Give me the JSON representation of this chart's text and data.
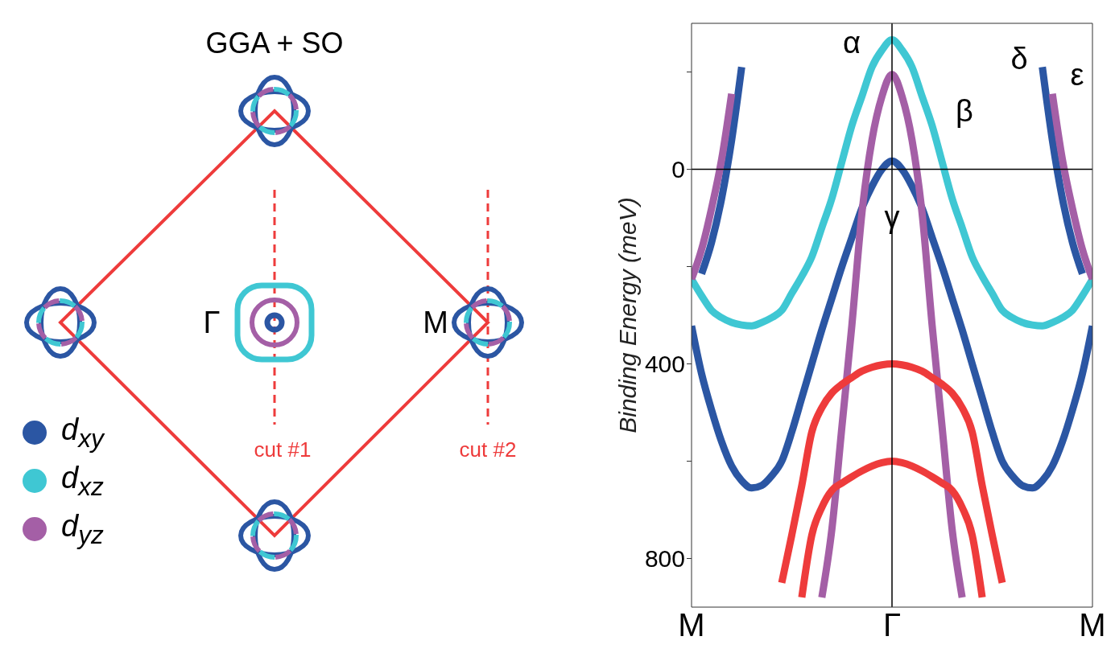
{
  "chart_data": [
    {
      "type": "other",
      "title": "GGA + SO",
      "annotations": [
        "Γ",
        "M",
        "cut #1",
        "cut #2"
      ]
    },
    {
      "type": "line",
      "ylabel": "Binding Energy (meV)",
      "categories": [
        "M",
        null,
        null,
        null,
        null,
        null,
        null,
        null,
        null,
        null,
        null,
        null,
        null,
        null,
        null,
        null,
        null,
        null,
        null,
        null,
        "Γ",
        null,
        null,
        null,
        null,
        null,
        null,
        null,
        null,
        null,
        null,
        null,
        null,
        null,
        null,
        null,
        null,
        null,
        null,
        null,
        "M"
      ],
      "ylim": [
        900,
        -300
      ],
      "yticks": [
        {
          "value": -200,
          "label": null
        },
        0,
        {
          "value": 200,
          "label": null
        },
        400,
        {
          "value": 600,
          "label": null
        },
        800
      ],
      "legend": "left",
      "ref_lines": [
        {
          "axis": "y",
          "value": 0,
          "color": "#000000"
        },
        {
          "axis": "x",
          "value": "Γ",
          "color": "#000000"
        }
      ],
      "annotations": [
        "α",
        "β",
        "γ",
        "δ",
        "ε"
      ],
      "series": [
        {
          "name": "d$_{xy}$",
          "color": "#2b56a3",
          "values": [
            322,
            420,
            495,
            560,
            610,
            640,
            655,
            650,
            630,
            600,
            540,
            470,
            400,
            330,
            265,
            200,
            140,
            80,
            35,
            0,
            -17,
            0,
            35,
            80,
            140,
            200,
            265,
            330,
            400,
            470,
            540,
            600,
            630,
            650,
            655,
            640,
            610,
            560,
            495,
            420,
            322
          ]
        },
        {
          "name": "d$_{xz}$",
          "color": "#3fc7d3",
          "values": [
            226,
            260,
            290,
            305,
            315,
            320,
            322,
            315,
            305,
            290,
            255,
            220,
            180,
            120,
            60,
            -15,
            -90,
            -150,
            -210,
            -245,
            -266,
            -245,
            -210,
            -150,
            -90,
            -15,
            60,
            120,
            180,
            220,
            255,
            290,
            305,
            315,
            320,
            322,
            315,
            305,
            290,
            260,
            226
          ]
        },
        {
          "name": "d$_{yz}$",
          "color": "#a45fa6",
          "values": [
            null,
            null,
            null,
            null,
            null,
            null,
            null,
            null,
            null,
            null,
            null,
            null,
            null,
            880,
            740,
            530,
            320,
            90,
            -60,
            -150,
            -195,
            -150,
            -60,
            90,
            320,
            530,
            740,
            880,
            null,
            null,
            null,
            null,
            null,
            null,
            null,
            null,
            null,
            null,
            null,
            null,
            null
          ]
        },
        {
          "color": "#2b56a3",
          "values": [
            null,
            215,
            150,
            60,
            -60,
            -210,
            null,
            null,
            null,
            null,
            null,
            null,
            null,
            null,
            null,
            null,
            null,
            null,
            null,
            null,
            null,
            null,
            null,
            null,
            null,
            null,
            null,
            null,
            null,
            null,
            null,
            null,
            null,
            null,
            null,
            -210,
            -60,
            60,
            150,
            215,
            null
          ]
        },
        {
          "color": "#a45fa6",
          "values": [
            226,
            165,
            80,
            -20,
            -155,
            null,
            null,
            null,
            null,
            null,
            null,
            null,
            null,
            null,
            null,
            null,
            null,
            null,
            null,
            null,
            null,
            null,
            null,
            null,
            null,
            null,
            null,
            null,
            null,
            null,
            null,
            null,
            null,
            null,
            null,
            null,
            -155,
            -20,
            80,
            165,
            226
          ]
        },
        {
          "color": "#ee3b3b",
          "values": [
            null,
            null,
            null,
            null,
            null,
            null,
            null,
            null,
            null,
            850,
            752,
            650,
            540,
            490,
            460,
            442,
            428,
            415,
            407,
            402,
            400,
            402,
            407,
            415,
            428,
            442,
            460,
            490,
            540,
            650,
            752,
            850,
            null,
            null,
            null,
            null,
            null,
            null,
            null,
            null,
            null
          ]
        },
        {
          "color": "#ee3b3b",
          "values": [
            null,
            null,
            null,
            null,
            null,
            null,
            null,
            null,
            null,
            null,
            null,
            880,
            752,
            695,
            660,
            645,
            632,
            620,
            610,
            603,
            600,
            603,
            610,
            620,
            632,
            645,
            660,
            695,
            752,
            880,
            null,
            null,
            null,
            null,
            null,
            null,
            null,
            null,
            null,
            null,
            null
          ]
        }
      ]
    }
  ]
}
